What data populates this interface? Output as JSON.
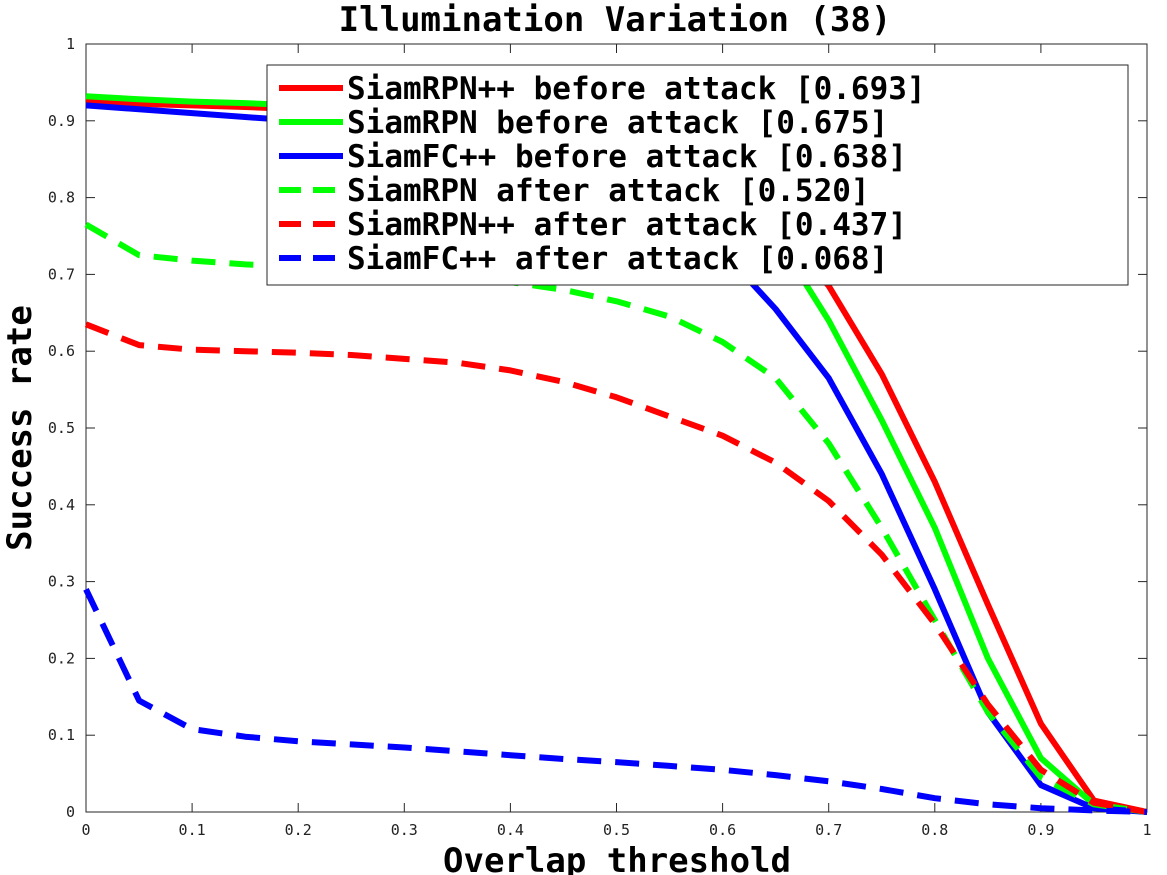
{
  "chart_data": {
    "type": "line",
    "title": "Illumination Variation (38)",
    "xlabel": "Overlap threshold",
    "ylabel": "Success rate",
    "xlim": [
      0,
      1
    ],
    "ylim": [
      0,
      1
    ],
    "xticks": [
      "0",
      "0.1",
      "0.2",
      "0.3",
      "0.4",
      "0.5",
      "0.6",
      "0.7",
      "0.8",
      "0.9",
      "1"
    ],
    "yticks": [
      "0",
      "0.1",
      "0.2",
      "0.3",
      "0.4",
      "0.5",
      "0.6",
      "0.7",
      "0.8",
      "0.9",
      "1"
    ],
    "grid": false,
    "legend_position": "top-right",
    "x": [
      0,
      0.05,
      0.1,
      0.15,
      0.2,
      0.25,
      0.3,
      0.35,
      0.4,
      0.45,
      0.5,
      0.55,
      0.6,
      0.65,
      0.7,
      0.75,
      0.8,
      0.85,
      0.9,
      0.95,
      1
    ],
    "series": [
      {
        "name": "SiamRPN++ before attack [0.693]",
        "color": "#ff0000",
        "dash": false,
        "values": [
          0.925,
          0.922,
          0.92,
          0.918,
          0.915,
          0.91,
          0.905,
          0.9,
          0.89,
          0.875,
          0.855,
          0.83,
          0.8,
          0.76,
          0.685,
          0.57,
          0.43,
          0.27,
          0.115,
          0.015,
          0
        ]
      },
      {
        "name": "SiamRPN before attack [0.675]",
        "color": "#00ff00",
        "dash": false,
        "values": [
          0.932,
          0.928,
          0.925,
          0.923,
          0.92,
          0.915,
          0.91,
          0.905,
          0.895,
          0.88,
          0.86,
          0.835,
          0.8,
          0.75,
          0.64,
          0.51,
          0.37,
          0.2,
          0.07,
          0.01,
          0
        ]
      },
      {
        "name": "SiamFC++ before attack [0.638]",
        "color": "#0000ff",
        "dash": false,
        "values": [
          0.92,
          0.915,
          0.91,
          0.905,
          0.9,
          0.895,
          0.89,
          0.88,
          0.87,
          0.85,
          0.825,
          0.78,
          0.73,
          0.655,
          0.565,
          0.44,
          0.29,
          0.13,
          0.035,
          0.005,
          0
        ]
      },
      {
        "name": "SiamRPN after attack [0.520]",
        "color": "#00ff00",
        "dash": true,
        "values": [
          0.765,
          0.725,
          0.718,
          0.713,
          0.71,
          0.706,
          0.702,
          0.697,
          0.69,
          0.68,
          0.665,
          0.645,
          0.612,
          0.565,
          0.48,
          0.37,
          0.25,
          0.13,
          0.045,
          0.01,
          0
        ]
      },
      {
        "name": "SiamRPN++ after attack [0.437]",
        "color": "#ff0000",
        "dash": true,
        "values": [
          0.635,
          0.608,
          0.602,
          0.6,
          0.598,
          0.595,
          0.59,
          0.585,
          0.575,
          0.56,
          0.54,
          0.515,
          0.49,
          0.455,
          0.405,
          0.335,
          0.245,
          0.14,
          0.055,
          0.012,
          0
        ]
      },
      {
        "name": "SiamFC++ after attack [0.068]",
        "color": "#0000ff",
        "dash": true,
        "values": [
          0.29,
          0.145,
          0.108,
          0.098,
          0.092,
          0.088,
          0.084,
          0.079,
          0.074,
          0.069,
          0.065,
          0.06,
          0.055,
          0.048,
          0.04,
          0.03,
          0.018,
          0.01,
          0.005,
          0.002,
          0
        ]
      }
    ]
  }
}
